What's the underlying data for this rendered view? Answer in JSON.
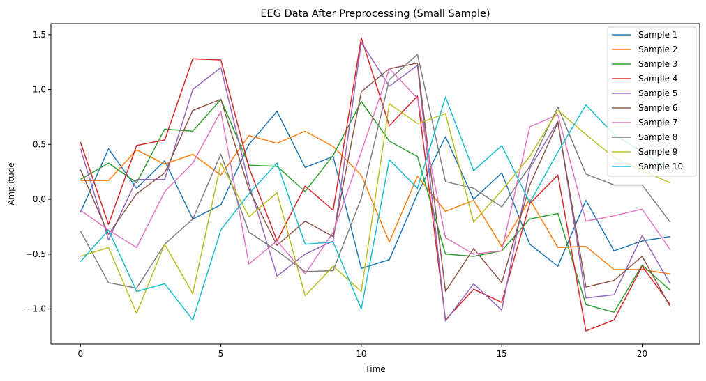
{
  "chart_data": {
    "type": "line",
    "title": "EEG Data After Preprocessing (Small Sample)",
    "xlabel": "Time",
    "ylabel": "Amplitude",
    "xlim": [
      -1.05,
      22.05
    ],
    "ylim": [
      -1.32,
      1.6
    ],
    "x_ticks": [
      0,
      5,
      10,
      15,
      20
    ],
    "y_ticks": [
      -1.0,
      -0.5,
      0.0,
      0.5,
      1.0,
      1.5
    ],
    "y_tick_labels": [
      "−1.0",
      "−0.5",
      "0.0",
      "0.5",
      "1.0",
      "1.5"
    ],
    "grid": false,
    "legend_position": "top-right",
    "x": [
      0,
      1,
      2,
      3,
      4,
      5,
      6,
      7,
      8,
      9,
      10,
      11,
      12,
      13,
      14,
      15,
      16,
      17,
      18,
      19,
      20,
      21
    ],
    "series": [
      {
        "name": "Sample 1",
        "color": "#1f77b4",
        "values": [
          -0.12,
          0.46,
          0.1,
          0.35,
          -0.18,
          -0.05,
          0.5,
          0.8,
          0.29,
          0.39,
          -0.63,
          -0.55,
          0.05,
          0.57,
          0.0,
          0.24,
          -0.41,
          -0.61,
          -0.01,
          -0.47,
          -0.38,
          -0.34
        ]
      },
      {
        "name": "Sample 2",
        "color": "#ff7f0e",
        "values": [
          0.17,
          0.17,
          0.45,
          0.32,
          0.41,
          0.22,
          0.58,
          0.51,
          0.62,
          0.48,
          0.22,
          -0.39,
          0.21,
          -0.11,
          -0.01,
          -0.43,
          0.0,
          -0.44,
          -0.43,
          -0.64,
          -0.64,
          -0.68
        ]
      },
      {
        "name": "Sample 3",
        "color": "#2ca02c",
        "values": [
          0.18,
          0.33,
          0.15,
          0.64,
          0.62,
          0.91,
          0.31,
          0.3,
          0.07,
          0.4,
          0.89,
          0.53,
          0.39,
          -0.5,
          -0.52,
          -0.47,
          -0.18,
          -0.13,
          -0.96,
          -1.03,
          -0.6,
          -0.83
        ]
      },
      {
        "name": "Sample 4",
        "color": "#d62728",
        "values": [
          0.52,
          -0.23,
          0.49,
          0.54,
          1.28,
          1.27,
          0.29,
          -0.38,
          0.12,
          -0.1,
          1.47,
          0.67,
          0.94,
          -1.1,
          -0.82,
          -0.94,
          -0.04,
          0.22,
          -1.2,
          -1.1,
          -0.61,
          -0.96
        ]
      },
      {
        "name": "Sample 5",
        "color": "#9467bd",
        "values": [
          0.46,
          -0.37,
          0.18,
          0.18,
          1.0,
          1.2,
          0.14,
          -0.7,
          -0.5,
          -0.38,
          1.43,
          1.03,
          1.22,
          -1.11,
          -0.77,
          -1.01,
          0.28,
          0.71,
          -0.9,
          -0.87,
          -0.33,
          -0.77
        ]
      },
      {
        "name": "Sample 6",
        "color": "#8c564b",
        "values": [
          0.27,
          -0.32,
          0.05,
          0.24,
          0.81,
          0.91,
          0.09,
          -0.42,
          -0.2,
          -0.34,
          0.98,
          1.19,
          1.24,
          -0.84,
          -0.45,
          -0.76,
          0.13,
          0.7,
          -0.8,
          -0.74,
          -0.52,
          -0.98
        ]
      },
      {
        "name": "Sample 7",
        "color": "#e377c2",
        "values": [
          -0.1,
          -0.28,
          -0.44,
          0.07,
          0.33,
          0.8,
          -0.59,
          -0.38,
          -0.68,
          -0.3,
          0.43,
          1.19,
          0.92,
          -0.35,
          -0.5,
          -0.47,
          0.66,
          0.77,
          -0.2,
          -0.15,
          -0.09,
          -0.46
        ]
      },
      {
        "name": "Sample 8",
        "color": "#7f7f7f",
        "values": [
          -0.29,
          -0.76,
          -0.81,
          -0.41,
          -0.18,
          0.41,
          -0.3,
          -0.47,
          -0.66,
          -0.65,
          0.01,
          1.09,
          1.32,
          0.16,
          0.1,
          -0.07,
          0.3,
          0.84,
          0.23,
          0.13,
          0.13,
          -0.21
        ]
      },
      {
        "name": "Sample 9",
        "color": "#bcbd22",
        "values": [
          -0.52,
          -0.44,
          -1.04,
          -0.41,
          -0.86,
          0.33,
          -0.16,
          0.06,
          -0.88,
          -0.61,
          -0.84,
          0.87,
          0.69,
          0.78,
          -0.21,
          0.08,
          0.39,
          0.81,
          0.59,
          0.38,
          0.26,
          0.15
        ]
      },
      {
        "name": "Sample 10",
        "color": "#17becf",
        "values": [
          -0.57,
          -0.28,
          -0.84,
          -0.77,
          -1.1,
          -0.28,
          0.05,
          0.33,
          -0.41,
          -0.39,
          -1.0,
          0.36,
          0.1,
          0.93,
          0.26,
          0.49,
          -0.03,
          0.43,
          0.86,
          0.59,
          0.43,
          0.26
        ]
      }
    ]
  }
}
